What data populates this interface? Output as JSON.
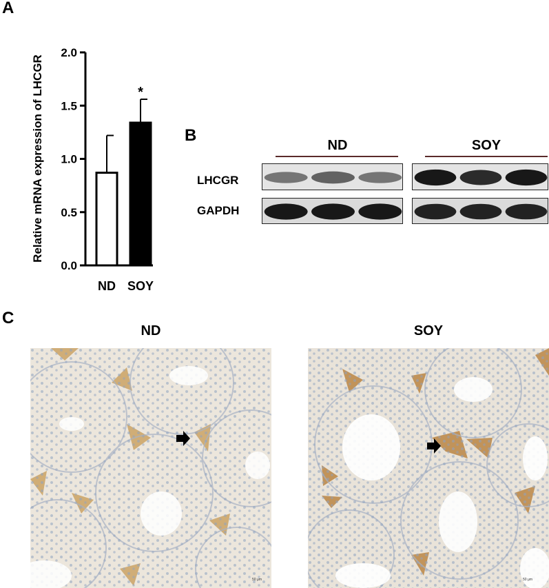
{
  "panels": {
    "a": "A",
    "b": "B",
    "c": "C"
  },
  "chart_data": {
    "type": "bar",
    "categories": [
      "ND",
      "SOY"
    ],
    "values": [
      0.87,
      1.34
    ],
    "errors": [
      0.35,
      0.22
    ],
    "significance": [
      "",
      "*"
    ],
    "bar_fill": [
      "#ffffff",
      "#000000"
    ],
    "ylabel": "Relative mRNA expression of LHCGR",
    "xlabel": "",
    "ylim": [
      0,
      2.0
    ],
    "yticks": [
      "0.0",
      "0.5",
      "1.0",
      "1.5",
      "2.0"
    ],
    "grid": false
  },
  "blot": {
    "groups": [
      "ND",
      "SOY"
    ],
    "rows": [
      {
        "label": "LHCGR",
        "band_intensity": {
          "ND": [
            0.45,
            0.55,
            0.45
          ],
          "SOY": [
            0.95,
            0.85,
            0.95
          ]
        }
      },
      {
        "label": "GAPDH",
        "band_intensity": {
          "ND": [
            0.95,
            0.95,
            0.95
          ],
          "SOY": [
            0.9,
            0.9,
            0.9
          ]
        }
      }
    ]
  },
  "micrographs": {
    "titles": [
      "ND",
      "SOY"
    ],
    "scale_label": "50 μm"
  }
}
